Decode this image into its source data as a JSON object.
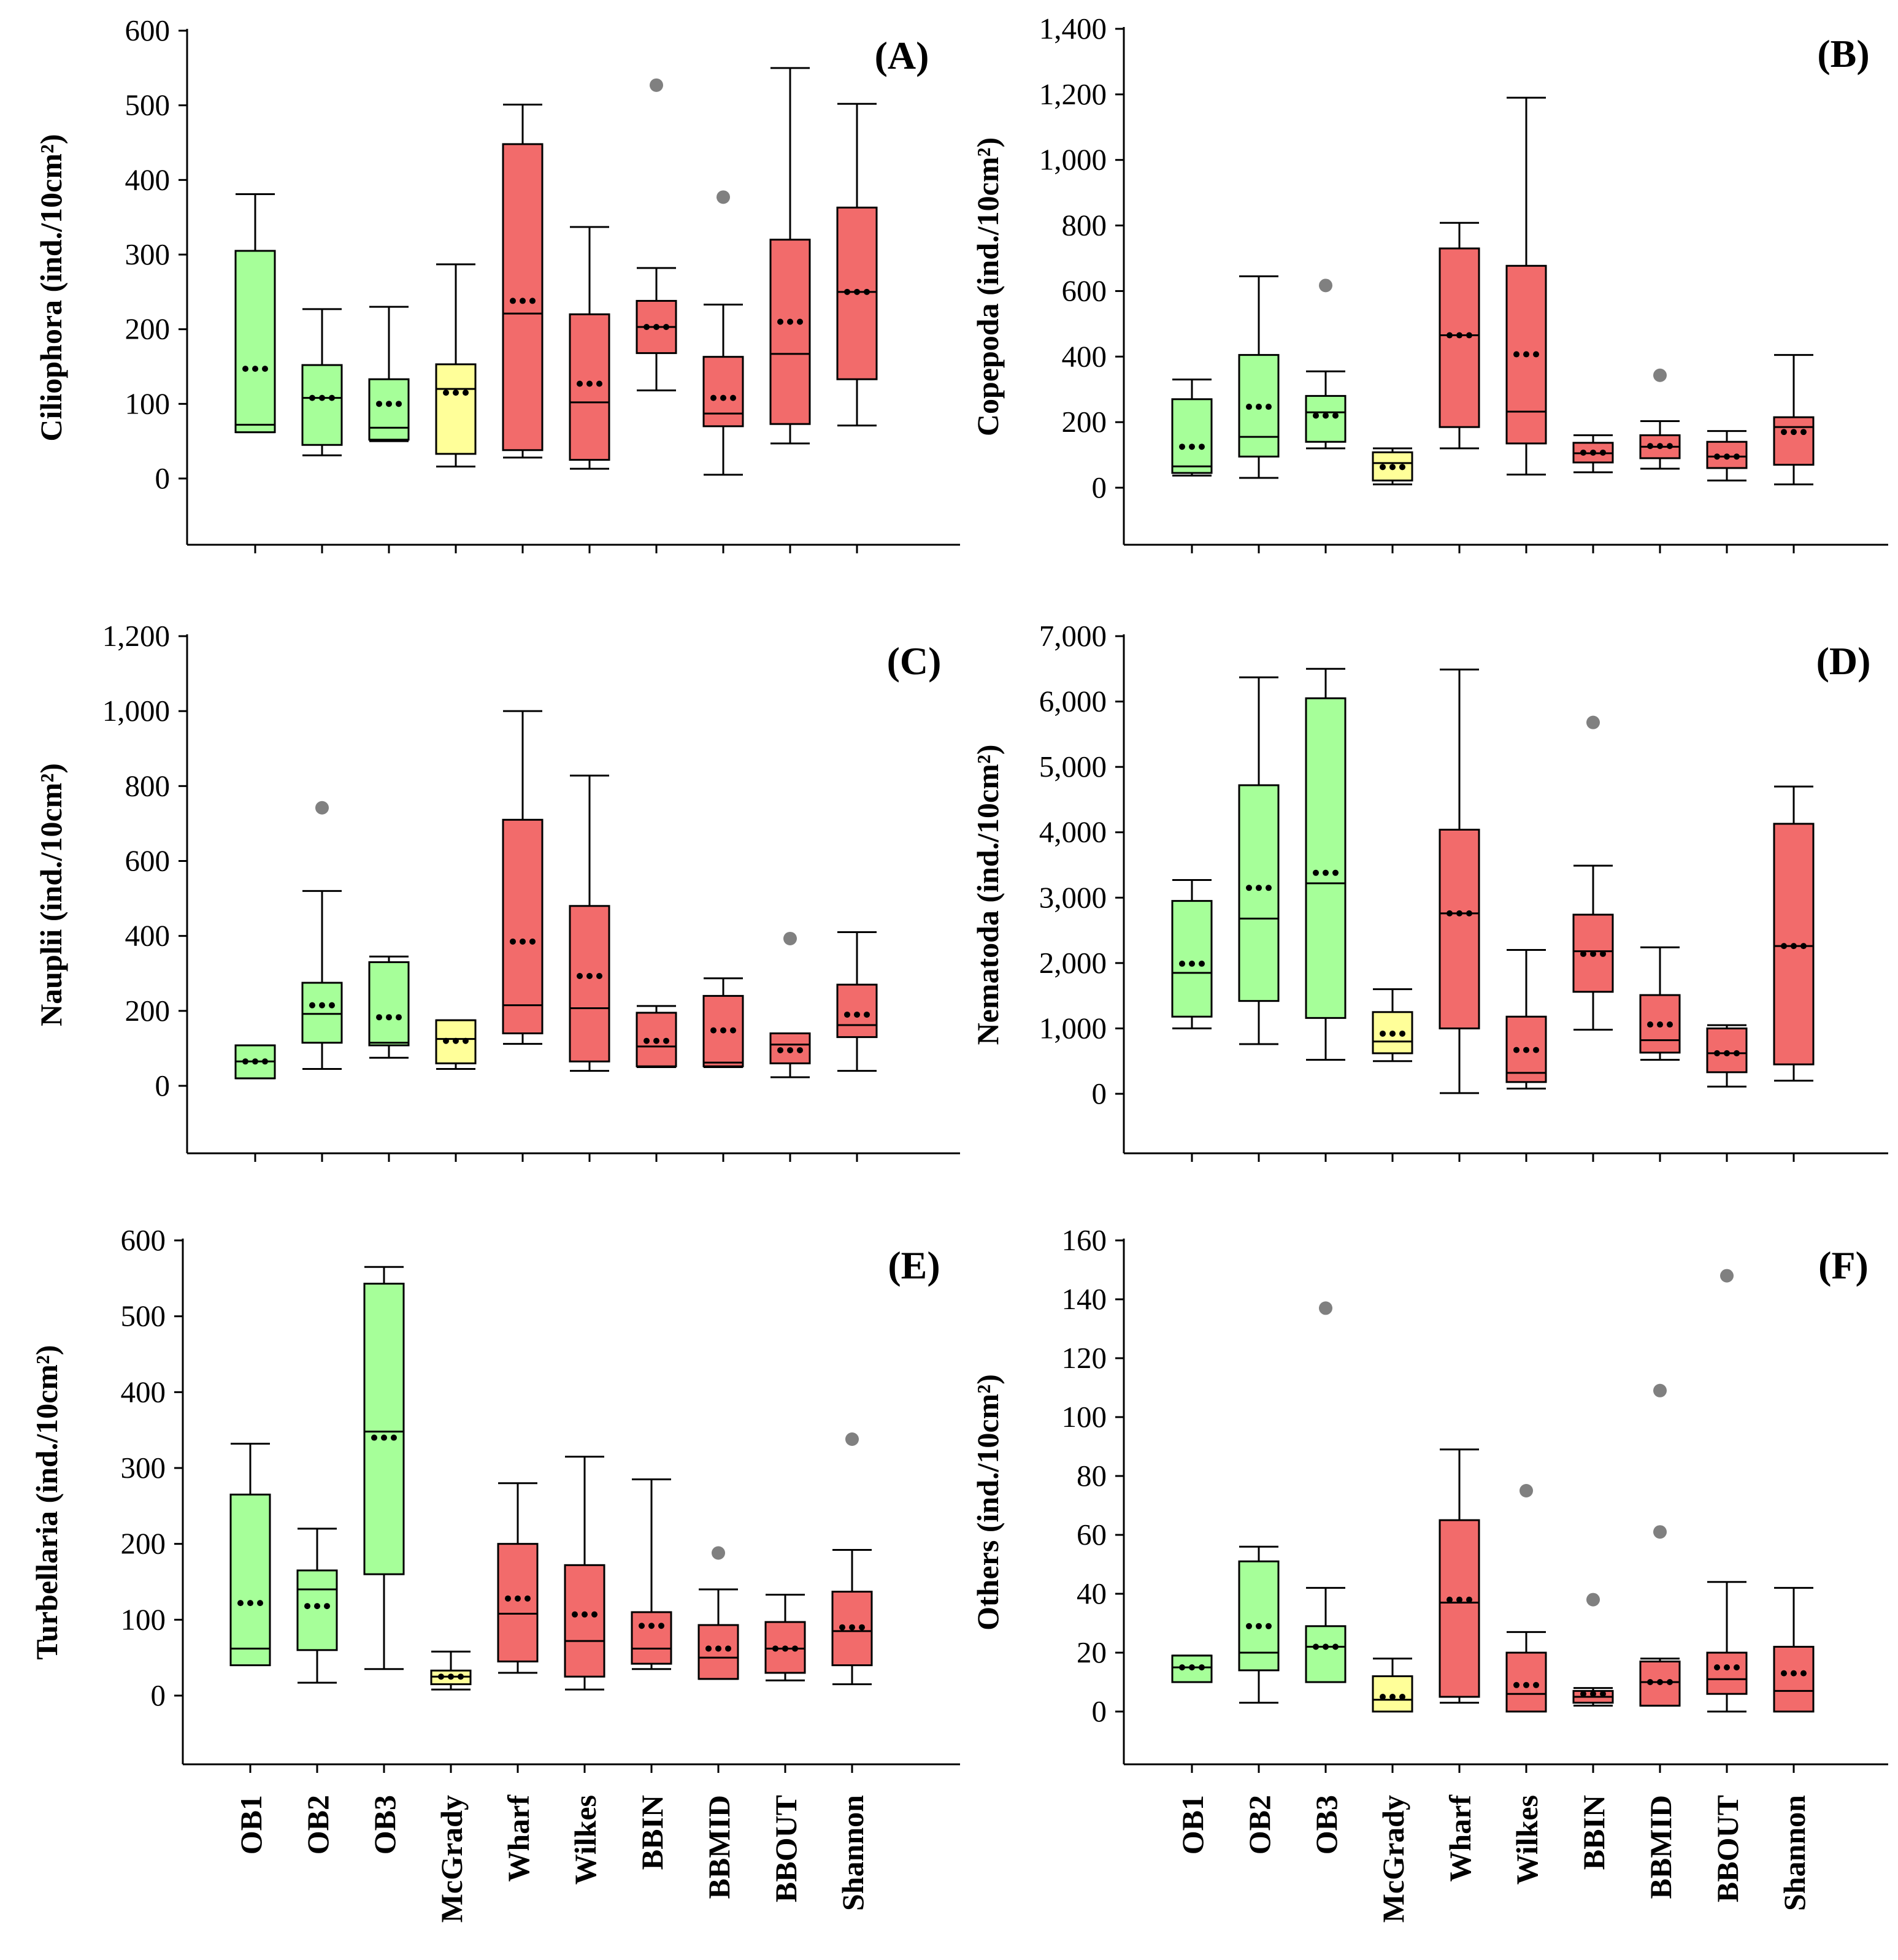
{
  "colors": {
    "green": "#a6ff99",
    "yellow": "#ffff99",
    "red": "#f26b6b",
    "outlier": "#808080",
    "line": "#000000"
  },
  "site_groups": {
    "green": [
      "OB1",
      "OB2",
      "OB3"
    ],
    "yellow": [
      "McGrady"
    ],
    "red": [
      "Wharf",
      "Wilkes",
      "BBIN",
      "BBMID",
      "BBOUT",
      "Shannon"
    ]
  },
  "chart_data": [
    {
      "type": "box",
      "panel_label": "(A)",
      "ylabel": "Ciliophora (ind./10cm²)",
      "ylim": [
        -90,
        600
      ],
      "yticks": [
        0,
        100,
        200,
        300,
        400,
        500,
        600
      ],
      "tick_labels": [
        "0",
        "100",
        "200",
        "300",
        "400",
        "500",
        "600"
      ],
      "categories": [
        "OB1",
        "OB2",
        "OB3",
        "McGrady",
        "Wharf",
        "Wilkes",
        "BBIN",
        "BBMID",
        "BBOUT",
        "Shannon"
      ],
      "boxes": [
        {
          "min": 62,
          "q1": 62,
          "median": 72,
          "q3": 305,
          "max": 381,
          "mean": 147,
          "outliers": []
        },
        {
          "min": 31,
          "q1": 45,
          "median": 108,
          "q3": 152,
          "max": 227,
          "mean": 108,
          "outliers": []
        },
        {
          "min": 50,
          "q1": 52,
          "median": 68,
          "q3": 133,
          "max": 230,
          "mean": 100,
          "outliers": []
        },
        {
          "min": 16,
          "q1": 33,
          "median": 120,
          "q3": 153,
          "max": 287,
          "mean": 115,
          "outliers": []
        },
        {
          "min": 28,
          "q1": 38,
          "median": 221,
          "q3": 448,
          "max": 501,
          "mean": 238,
          "outliers": []
        },
        {
          "min": 13,
          "q1": 25,
          "median": 102,
          "q3": 220,
          "max": 337,
          "mean": 127,
          "outliers": []
        },
        {
          "min": 118,
          "q1": 168,
          "median": 203,
          "q3": 238,
          "max": 282,
          "mean": 203,
          "outliers": [
            527
          ]
        },
        {
          "min": 5,
          "q1": 70,
          "median": 87,
          "q3": 163,
          "max": 233,
          "mean": 108,
          "outliers": [
            377
          ]
        },
        {
          "min": 47,
          "q1": 73,
          "median": 167,
          "q3": 320,
          "max": 550,
          "mean": 210,
          "outliers": []
        },
        {
          "min": 71,
          "q1": 133,
          "median": 250,
          "q3": 363,
          "max": 502,
          "mean": 250,
          "outliers": []
        }
      ]
    },
    {
      "type": "box",
      "panel_label": "(B)",
      "ylabel": "Copepoda (ind./10cm²)",
      "ylim": [
        -175,
        1400
      ],
      "yticks": [
        0,
        200,
        400,
        600,
        800,
        1000,
        1200,
        1400
      ],
      "tick_labels": [
        "0",
        "200",
        "400",
        "600",
        "800",
        "1,000",
        "1,200",
        "1,400"
      ],
      "categories": [
        "OB1",
        "OB2",
        "OB3",
        "McGrady",
        "Wharf",
        "Wilkes",
        "BBIN",
        "BBMID",
        "BBOUT",
        "Shannon"
      ],
      "boxes": [
        {
          "min": 37,
          "q1": 45,
          "median": 65,
          "q3": 270,
          "max": 330,
          "mean": 125,
          "outliers": []
        },
        {
          "min": 30,
          "q1": 95,
          "median": 155,
          "q3": 405,
          "max": 645,
          "mean": 247,
          "outliers": []
        },
        {
          "min": 120,
          "q1": 140,
          "median": 230,
          "q3": 280,
          "max": 355,
          "mean": 220,
          "outliers": [
            617
          ]
        },
        {
          "min": 10,
          "q1": 22,
          "median": 75,
          "q3": 108,
          "max": 120,
          "mean": 63,
          "outliers": []
        },
        {
          "min": 120,
          "q1": 185,
          "median": 465,
          "q3": 730,
          "max": 808,
          "mean": 465,
          "outliers": []
        },
        {
          "min": 40,
          "q1": 135,
          "median": 232,
          "q3": 677,
          "max": 1190,
          "mean": 407,
          "outliers": []
        },
        {
          "min": 47,
          "q1": 77,
          "median": 105,
          "q3": 137,
          "max": 160,
          "mean": 107,
          "outliers": []
        },
        {
          "min": 58,
          "q1": 90,
          "median": 125,
          "q3": 160,
          "max": 203,
          "mean": 127,
          "outliers": [
            343
          ]
        },
        {
          "min": 22,
          "q1": 60,
          "median": 95,
          "q3": 140,
          "max": 173,
          "mean": 95,
          "outliers": []
        },
        {
          "min": 10,
          "q1": 70,
          "median": 185,
          "q3": 215,
          "max": 405,
          "mean": 170,
          "outliers": []
        }
      ]
    },
    {
      "type": "box",
      "panel_label": "(C)",
      "ylabel": "Nauplii (ind./10cm²)",
      "ylim": [
        -180,
        1200
      ],
      "yticks": [
        0,
        200,
        400,
        600,
        800,
        1000,
        1200
      ],
      "tick_labels": [
        "0",
        "200",
        "400",
        "600",
        "800",
        "1,000",
        "1,200"
      ],
      "categories": [
        "OB1",
        "OB2",
        "OB3",
        "McGrady",
        "Wharf",
        "Wilkes",
        "BBIN",
        "BBMID",
        "BBOUT",
        "Shannon"
      ],
      "boxes": [
        {
          "min": 20,
          "q1": 20,
          "median": 65,
          "q3": 108,
          "max": 108,
          "mean": 65,
          "outliers": []
        },
        {
          "min": 45,
          "q1": 115,
          "median": 192,
          "q3": 275,
          "max": 520,
          "mean": 215,
          "outliers": [
            742
          ]
        },
        {
          "min": 75,
          "q1": 108,
          "median": 115,
          "q3": 330,
          "max": 345,
          "mean": 183,
          "outliers": []
        },
        {
          "min": 45,
          "q1": 60,
          "median": 125,
          "q3": 175,
          "max": 175,
          "mean": 120,
          "outliers": []
        },
        {
          "min": 112,
          "q1": 140,
          "median": 215,
          "q3": 710,
          "max": 1000,
          "mean": 385,
          "outliers": []
        },
        {
          "min": 40,
          "q1": 65,
          "median": 207,
          "q3": 480,
          "max": 828,
          "mean": 293,
          "outliers": []
        },
        {
          "min": 50,
          "q1": 52,
          "median": 105,
          "q3": 195,
          "max": 213,
          "mean": 120,
          "outliers": []
        },
        {
          "min": 50,
          "q1": 52,
          "median": 62,
          "q3": 240,
          "max": 287,
          "mean": 148,
          "outliers": []
        },
        {
          "min": 23,
          "q1": 60,
          "median": 110,
          "q3": 140,
          "max": 140,
          "mean": 95,
          "outliers": [
            393
          ]
        },
        {
          "min": 40,
          "q1": 130,
          "median": 162,
          "q3": 270,
          "max": 410,
          "mean": 190,
          "outliers": []
        }
      ]
    },
    {
      "type": "box",
      "panel_label": "(D)",
      "ylabel": "Nematoda (ind./10cm²)",
      "ylim": [
        -850,
        7000
      ],
      "yticks": [
        0,
        1000,
        2000,
        3000,
        4000,
        5000,
        6000,
        7000
      ],
      "tick_labels": [
        "0",
        "1,000",
        "2,000",
        "3,000",
        "4,000",
        "5,000",
        "6,000",
        "7,000"
      ],
      "categories": [
        "OB1",
        "OB2",
        "OB3",
        "McGrady",
        "Wharf",
        "Wilkes",
        "BBIN",
        "BBMID",
        "BBOUT",
        "Shannon"
      ],
      "boxes": [
        {
          "min": 1000,
          "q1": 1180,
          "median": 1850,
          "q3": 2950,
          "max": 3270,
          "mean": 1990,
          "outliers": []
        },
        {
          "min": 760,
          "q1": 1420,
          "median": 2680,
          "q3": 4720,
          "max": 6370,
          "mean": 3150,
          "outliers": []
        },
        {
          "min": 520,
          "q1": 1160,
          "median": 3220,
          "q3": 6050,
          "max": 6500,
          "mean": 3380,
          "outliers": []
        },
        {
          "min": 500,
          "q1": 620,
          "median": 800,
          "q3": 1250,
          "max": 1600,
          "mean": 920,
          "outliers": []
        },
        {
          "min": 10,
          "q1": 1000,
          "median": 2760,
          "q3": 4040,
          "max": 6490,
          "mean": 2760,
          "outliers": []
        },
        {
          "min": 80,
          "q1": 180,
          "median": 320,
          "q3": 1180,
          "max": 2200,
          "mean": 670,
          "outliers": []
        },
        {
          "min": 980,
          "q1": 1560,
          "median": 2180,
          "q3": 2740,
          "max": 3490,
          "mean": 2140,
          "outliers": [
            5680
          ]
        },
        {
          "min": 520,
          "q1": 630,
          "median": 820,
          "q3": 1510,
          "max": 2240,
          "mean": 1060,
          "outliers": []
        },
        {
          "min": 110,
          "q1": 330,
          "median": 620,
          "q3": 1000,
          "max": 1050,
          "mean": 620,
          "outliers": []
        },
        {
          "min": 200,
          "q1": 450,
          "median": 2260,
          "q3": 4130,
          "max": 4700,
          "mean": 2260,
          "outliers": []
        }
      ]
    },
    {
      "type": "box",
      "panel_label": "(E)",
      "ylabel": "Turbellaria (ind./10cm²)",
      "ylim": [
        -90,
        600
      ],
      "yticks": [
        0,
        100,
        200,
        300,
        400,
        500,
        600
      ],
      "tick_labels": [
        "0",
        "100",
        "200",
        "300",
        "400",
        "500",
        "600"
      ],
      "categories": [
        "OB1",
        "OB2",
        "OB3",
        "McGrady",
        "Wharf",
        "Wilkes",
        "BBIN",
        "BBMID",
        "BBOUT",
        "Shannon"
      ],
      "boxes": [
        {
          "min": 40,
          "q1": 40,
          "median": 62,
          "q3": 265,
          "max": 332,
          "mean": 122,
          "outliers": []
        },
        {
          "min": 17,
          "q1": 60,
          "median": 140,
          "q3": 165,
          "max": 220,
          "mean": 118,
          "outliers": []
        },
        {
          "min": 35,
          "q1": 160,
          "median": 348,
          "q3": 543,
          "max": 565,
          "mean": 340,
          "outliers": []
        },
        {
          "min": 8,
          "q1": 15,
          "median": 25,
          "q3": 33,
          "max": 58,
          "mean": 25,
          "outliers": []
        },
        {
          "min": 30,
          "q1": 45,
          "median": 108,
          "q3": 200,
          "max": 280,
          "mean": 128,
          "outliers": []
        },
        {
          "min": 8,
          "q1": 25,
          "median": 72,
          "q3": 172,
          "max": 315,
          "mean": 107,
          "outliers": []
        },
        {
          "min": 35,
          "q1": 42,
          "median": 62,
          "q3": 110,
          "max": 285,
          "mean": 92,
          "outliers": []
        },
        {
          "min": 22,
          "q1": 22,
          "median": 50,
          "q3": 93,
          "max": 140,
          "mean": 62,
          "outliers": [
            188
          ]
        },
        {
          "min": 20,
          "q1": 30,
          "median": 62,
          "q3": 97,
          "max": 133,
          "mean": 62,
          "outliers": []
        },
        {
          "min": 15,
          "q1": 40,
          "median": 85,
          "q3": 137,
          "max": 192,
          "mean": 90,
          "outliers": [
            338
          ]
        }
      ]
    },
    {
      "type": "box",
      "panel_label": "(F)",
      "ylabel": "Others (ind./10cm²)",
      "ylim": [
        -18,
        160
      ],
      "yticks": [
        0,
        20,
        40,
        60,
        80,
        100,
        120,
        140,
        160
      ],
      "tick_labels": [
        "0",
        "20",
        "40",
        "60",
        "80",
        "100",
        "120",
        "140",
        "160"
      ],
      "categories": [
        "OB1",
        "OB2",
        "OB3",
        "McGrady",
        "Wharf",
        "Wilkes",
        "BBIN",
        "BBMID",
        "BBOUT",
        "Shannon"
      ],
      "boxes": [
        {
          "min": 10,
          "q1": 10,
          "median": 15,
          "q3": 19,
          "max": 19,
          "mean": 15,
          "outliers": []
        },
        {
          "min": 3,
          "q1": 14,
          "median": 20,
          "q3": 51,
          "max": 56,
          "mean": 29,
          "outliers": []
        },
        {
          "min": 10,
          "q1": 10,
          "median": 22,
          "q3": 29,
          "max": 42,
          "mean": 22,
          "outliers": [
            137
          ]
        },
        {
          "min": 0,
          "q1": 0,
          "median": 4,
          "q3": 12,
          "max": 18,
          "mean": 5,
          "outliers": []
        },
        {
          "min": 3,
          "q1": 5,
          "median": 37,
          "q3": 65,
          "max": 89,
          "mean": 38,
          "outliers": []
        },
        {
          "min": 0,
          "q1": 0,
          "median": 6,
          "q3": 20,
          "max": 27,
          "mean": 9,
          "outliers": [
            75
          ]
        },
        {
          "min": 2,
          "q1": 3,
          "median": 5,
          "q3": 7,
          "max": 8,
          "mean": 6,
          "outliers": [
            38
          ]
        },
        {
          "min": 2,
          "q1": 2,
          "median": 10,
          "q3": 17,
          "max": 18,
          "mean": 10,
          "outliers": [
            61,
            109
          ]
        },
        {
          "min": 0,
          "q1": 6,
          "median": 11,
          "q3": 20,
          "max": 44,
          "mean": 15,
          "outliers": [
            148
          ]
        },
        {
          "min": 0,
          "q1": 0,
          "median": 7,
          "q3": 22,
          "max": 42,
          "mean": 13,
          "outliers": []
        }
      ]
    }
  ]
}
